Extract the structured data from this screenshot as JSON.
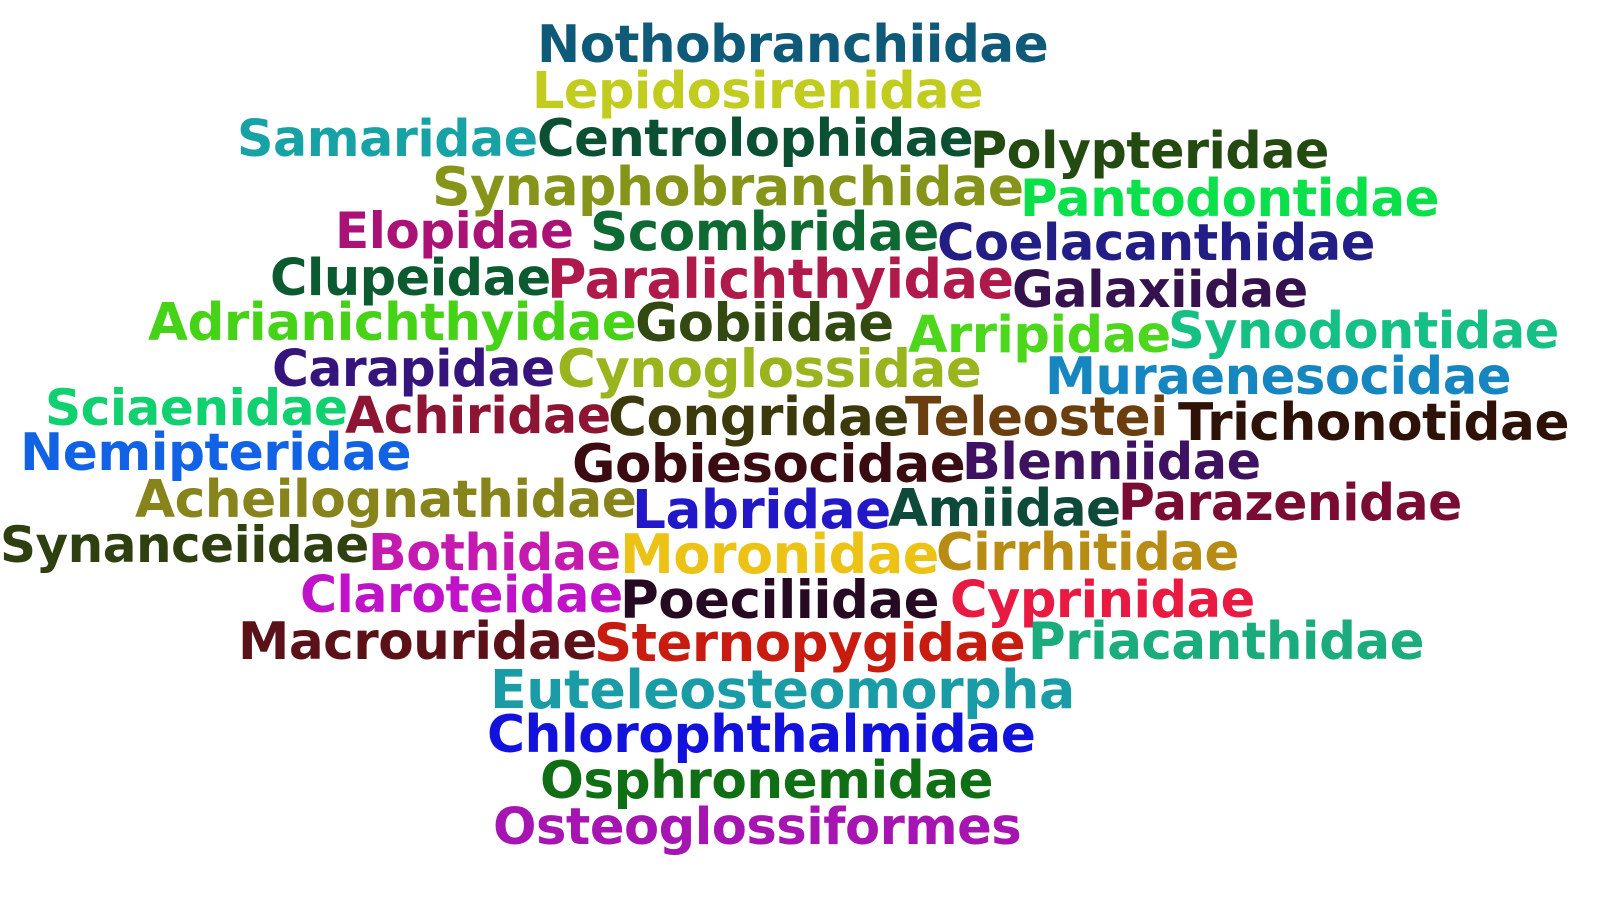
{
  "words": [
    {
      "text": "Nothobranchiidae",
      "color": "#0e5a78"
    },
    {
      "text": "Lepidosirenidae",
      "color": "#c2cc1e"
    },
    {
      "text": "Samaridae",
      "color": "#17a2a6"
    },
    {
      "text": "Centrolophidae",
      "color": "#0c5034"
    },
    {
      "text": "Polypteridae",
      "color": "#234a10"
    },
    {
      "text": "Synaphobranchidae",
      "color": "#86941a"
    },
    {
      "text": "Pantodontidae",
      "color": "#0ae04a"
    },
    {
      "text": "Elopidae",
      "color": "#aa1276"
    },
    {
      "text": "Scombridae",
      "color": "#0e6a32"
    },
    {
      "text": "Coelacanthidae",
      "color": "#231e86"
    },
    {
      "text": "Clupeidae",
      "color": "#0c5a30"
    },
    {
      "text": "Paralichthyidae",
      "color": "#b01a4a"
    },
    {
      "text": "Galaxiidae",
      "color": "#35124e"
    },
    {
      "text": "Adrianichthyidae",
      "color": "#46d216"
    },
    {
      "text": "Gobiidae",
      "color": "#324a12"
    },
    {
      "text": "Arripidae",
      "color": "#4cd61c"
    },
    {
      "text": "Synodontidae",
      "color": "#14c084"
    },
    {
      "text": "Carapidae",
      "color": "#35157c"
    },
    {
      "text": "Cynoglossidae",
      "color": "#9ab41e"
    },
    {
      "text": "Muraenesocidae",
      "color": "#1686c0"
    },
    {
      "text": "Sciaenidae",
      "color": "#10d070"
    },
    {
      "text": "Achiridae",
      "color": "#8e1434"
    },
    {
      "text": "Congridae",
      "color": "#3c3a0c"
    },
    {
      "text": "Teleostei",
      "color": "#6b3e10"
    },
    {
      "text": "Trichonotidae",
      "color": "#2e1208"
    },
    {
      "text": "Nemipteridae",
      "color": "#1262e6"
    },
    {
      "text": "Gobiesocidae",
      "color": "#3a0c12"
    },
    {
      "text": "Blenniidae",
      "color": "#3e1260"
    },
    {
      "text": "Acheilognathidae",
      "color": "#86841a"
    },
    {
      "text": "Labridae",
      "color": "#2218c8"
    },
    {
      "text": "Amiidae",
      "color": "#0e4a3a"
    },
    {
      "text": "Parazenidae",
      "color": "#7a0c34"
    },
    {
      "text": "Synanceiidae",
      "color": "#2e4010"
    },
    {
      "text": "Bothidae",
      "color": "#c41ab0"
    },
    {
      "text": "Moronidae",
      "color": "#ecc214"
    },
    {
      "text": "Cirrhitidae",
      "color": "#b88c14"
    },
    {
      "text": "Claroteidae",
      "color": "#c012c8"
    },
    {
      "text": "Poeciliidae",
      "color": "#260a22"
    },
    {
      "text": "Cyprinidae",
      "color": "#e81a42"
    },
    {
      "text": "Macrouridae",
      "color": "#5a1218"
    },
    {
      "text": "Sternopygidae",
      "color": "#c81c10"
    },
    {
      "text": "Priacanthidae",
      "color": "#1aac7c"
    },
    {
      "text": "Euteleosteomorpha",
      "color": "#1a9ca6"
    },
    {
      "text": "Chlorophthalmidae",
      "color": "#1212dc"
    },
    {
      "text": "Osphronemidae",
      "color": "#106e14"
    },
    {
      "text": "Osteoglossiformes",
      "color": "#a614b2"
    }
  ]
}
